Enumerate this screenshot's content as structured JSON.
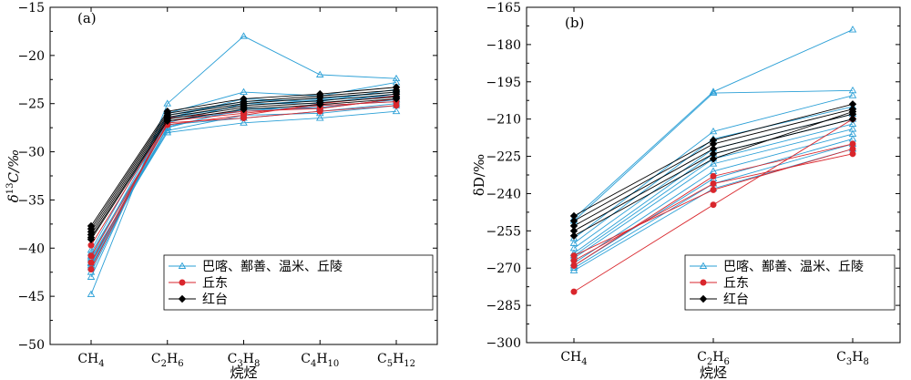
{
  "chart_data": [
    {
      "type": "line",
      "panel": "(a)",
      "categories": [
        "CH4",
        "C2H6",
        "C3H8",
        "C4H10",
        "C5H12"
      ],
      "xlabel": "烷烃",
      "ylabel": "δ13C/‰",
      "ylim": [
        -50,
        -15
      ],
      "yticks": [
        -50,
        -45,
        -40,
        -35,
        -30,
        -25,
        -20,
        -15
      ],
      "legend": {
        "position": "bottom-right",
        "entries": [
          "巴喀、鄯善、温米、丘陵",
          "丘东",
          "红台"
        ]
      },
      "series": [
        {
          "group": "巴喀、鄯善、温米、丘陵",
          "values": [
            -44.8,
            -25.0,
            -18.0,
            -22.0,
            -22.4
          ]
        },
        {
          "group": "巴喀、鄯善、温米、丘陵",
          "values": [
            -43.0,
            -26.0,
            -23.8,
            -24.2,
            -22.8
          ]
        },
        {
          "group": "巴喀、鄯善、温米、丘陵",
          "values": [
            -42.5,
            -26.5,
            -24.5,
            -24.8,
            -23.5
          ]
        },
        {
          "group": "巴喀、鄯善、温米、丘陵",
          "values": [
            -42.0,
            -27.0,
            -25.0,
            -25.0,
            -24.0
          ]
        },
        {
          "group": "巴喀、鄯善、温米、丘陵",
          "values": [
            -41.8,
            -27.5,
            -25.5,
            -25.5,
            -24.5
          ]
        },
        {
          "group": "巴喀、鄯善、温米、丘陵",
          "values": [
            -41.5,
            -26.8,
            -25.8,
            -25.2,
            -24.8
          ]
        },
        {
          "group": "巴喀、鄯善、温米、丘陵",
          "values": [
            -41.2,
            -27.8,
            -26.2,
            -26.0,
            -25.2
          ]
        },
        {
          "group": "巴喀、鄯善、温米、丘陵",
          "values": [
            -41.0,
            -28.0,
            -27.0,
            -26.5,
            -25.8
          ]
        },
        {
          "group": "巴喀、鄯善、温米、丘陵",
          "values": [
            -40.8,
            -26.5,
            -25.2,
            -24.6,
            -24.2
          ]
        },
        {
          "group": "巴喀、鄯善、温米、丘陵",
          "values": [
            -40.5,
            -27.2,
            -26.5,
            -25.8,
            -25.0
          ]
        },
        {
          "group": "巴喀、鄯善、温米、丘陵",
          "values": [
            -40.2,
            -26.2,
            -24.8,
            -24.5,
            -23.8
          ]
        },
        {
          "group": "巴喀、鄯善、温米、丘陵",
          "values": [
            -41.6,
            -27.4,
            -25.6,
            -25.4,
            -24.6
          ]
        },
        {
          "group": "丘东",
          "values": [
            -39.7,
            -26.8,
            -26.0,
            -25.2,
            -24.8
          ]
        },
        {
          "group": "丘东",
          "values": [
            -41.5,
            -27.0,
            -26.5,
            -25.8,
            -25.2
          ]
        },
        {
          "group": "丘东",
          "values": [
            -42.2,
            -26.5,
            -25.8,
            -25.5,
            -24.5
          ]
        },
        {
          "group": "丘东",
          "values": [
            -40.8,
            -27.2,
            -26.2,
            -25.0,
            -24.2
          ]
        },
        {
          "group": "红台",
          "values": [
            -37.7,
            -25.8,
            -24.5,
            -24.0,
            -23.3
          ]
        },
        {
          "group": "红台",
          "values": [
            -38.0,
            -26.0,
            -24.8,
            -24.2,
            -23.6
          ]
        },
        {
          "group": "红台",
          "values": [
            -38.3,
            -26.2,
            -25.0,
            -24.4,
            -23.8
          ]
        },
        {
          "group": "红台",
          "values": [
            -38.6,
            -26.4,
            -25.2,
            -24.7,
            -24.0
          ]
        },
        {
          "group": "红台",
          "values": [
            -38.9,
            -26.6,
            -25.4,
            -24.9,
            -24.3
          ]
        },
        {
          "group": "红台",
          "values": [
            -39.1,
            -26.8,
            -25.6,
            -25.1,
            -24.5
          ]
        }
      ]
    },
    {
      "type": "line",
      "panel": "(b)",
      "categories": [
        "CH4",
        "C2H6",
        "C3H8"
      ],
      "xlabel": "烷烃",
      "ylabel": "δD/‰",
      "ylim": [
        -300,
        -165
      ],
      "yticks": [
        -300,
        -285,
        -270,
        -255,
        -240,
        -225,
        -210,
        -195,
        -180,
        -165
      ],
      "legend": {
        "position": "bottom-right",
        "entries": [
          "巴喀、鄯善、温米、丘陵",
          "丘东",
          "红台"
        ]
      },
      "series": [
        {
          "group": "巴喀、鄯善、温米、丘陵",
          "values": [
            -250.0,
            -199.0,
            -174.0
          ]
        },
        {
          "group": "巴喀、鄯善、温米、丘陵",
          "values": [
            -251.0,
            -199.5,
            -198.5
          ]
        },
        {
          "group": "巴喀、鄯善、温米、丘陵",
          "values": [
            -258.0,
            -215.0,
            -200.5
          ]
        },
        {
          "group": "巴喀、鄯善、温米、丘陵",
          "values": [
            -260.0,
            -218.0,
            -205.0
          ]
        },
        {
          "group": "巴喀、鄯善、温米、丘陵",
          "values": [
            -262.0,
            -222.0,
            -208.0
          ]
        },
        {
          "group": "巴喀、鄯善、温米、丘陵",
          "values": [
            -265.0,
            -226.0,
            -212.0
          ]
        },
        {
          "group": "巴喀、鄯善、温米、丘陵",
          "values": [
            -266.0,
            -228.0,
            -214.0
          ]
        },
        {
          "group": "巴喀、鄯善、温米、丘陵",
          "values": [
            -268.0,
            -231.0,
            -216.0
          ]
        },
        {
          "group": "巴喀、鄯善、温米、丘陵",
          "values": [
            -269.0,
            -234.0,
            -218.0
          ]
        },
        {
          "group": "巴喀、鄯善、温米、丘陵",
          "values": [
            -270.0,
            -236.0,
            -220.0
          ]
        },
        {
          "group": "巴喀、鄯善、温米、丘陵",
          "values": [
            -271.0,
            -238.0,
            -222.0
          ]
        },
        {
          "group": "巴喀、鄯善、温米、丘陵",
          "values": [
            -264.0,
            -224.0,
            -210.0
          ]
        },
        {
          "group": "丘东",
          "values": [
            -279.5,
            -244.5,
            -210.0
          ]
        },
        {
          "group": "丘东",
          "values": [
            -265.0,
            -238.5,
            -222.0
          ]
        },
        {
          "group": "丘东",
          "values": [
            -267.0,
            -236.0,
            -224.0
          ]
        },
        {
          "group": "丘东",
          "values": [
            -269.0,
            -233.0,
            -220.0
          ]
        },
        {
          "group": "红台",
          "values": [
            -249.0,
            -218.5,
            -204.0
          ]
        },
        {
          "group": "红台",
          "values": [
            -251.0,
            -220.0,
            -206.0
          ]
        },
        {
          "group": "红台",
          "values": [
            -253.0,
            -222.0,
            -208.0
          ]
        },
        {
          "group": "红台",
          "values": [
            -255.0,
            -224.0,
            -210.0
          ]
        },
        {
          "group": "红台",
          "values": [
            -257.0,
            -226.0,
            -207.0
          ]
        }
      ]
    }
  ],
  "colors": {
    "巴喀、鄯善、温米、丘陵": "#2a9fd6",
    "丘东": "#d9262c",
    "红台": "#000000"
  }
}
